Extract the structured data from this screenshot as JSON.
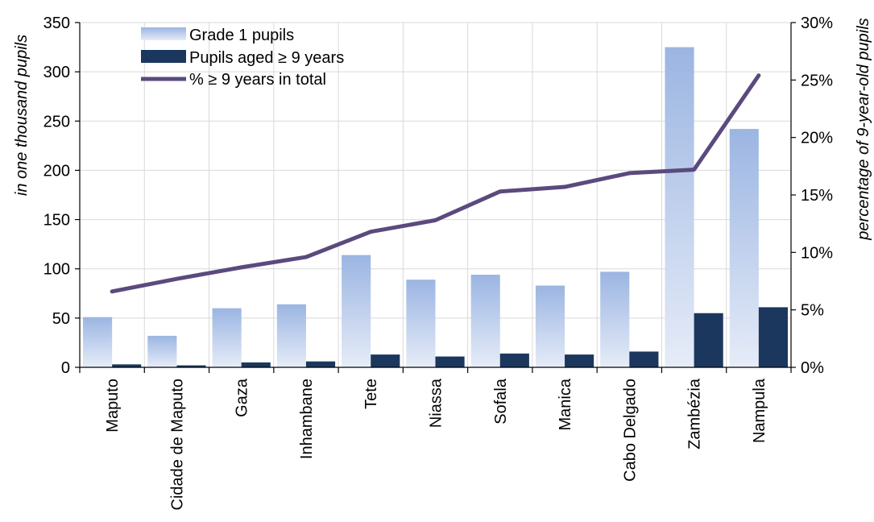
{
  "chart_data": {
    "type": "bar",
    "categories": [
      "Maputo",
      "Cidade de Maputo",
      "Gaza",
      "Inhambane",
      "Tete",
      "Niassa",
      "Sofala",
      "Manica",
      "Cabo Delgado",
      "Zambézia",
      "Nampula"
    ],
    "series": [
      {
        "name": "Grade 1 pupils",
        "type": "bar",
        "axis": "left",
        "values": [
          51,
          32,
          60,
          64,
          114,
          89,
          94,
          83,
          97,
          325,
          242
        ]
      },
      {
        "name": "Pupils aged ≥ 9 years",
        "type": "bar",
        "axis": "left",
        "values": [
          3,
          2,
          5,
          6,
          13,
          11,
          14,
          13,
          16,
          55,
          61
        ]
      },
      {
        "name": "% ≥ 9  years in total",
        "type": "line",
        "axis": "right",
        "values": [
          6.6,
          7.7,
          8.7,
          9.6,
          11.8,
          12.8,
          15.3,
          15.7,
          16.9,
          17.2,
          25.4
        ]
      }
    ],
    "ylabel": "in one thousand pupils",
    "y2label": "percentage of 9-year-old pupils",
    "ylim": [
      0,
      350
    ],
    "y2lim": [
      0,
      30
    ],
    "yticks": [
      "0",
      "50",
      "100",
      "150",
      "200",
      "250",
      "300",
      "350"
    ],
    "y2ticks": [
      "0%",
      "5%",
      "10%",
      "15%",
      "20%",
      "25%",
      "30%"
    ],
    "grid": true,
    "legend_position": "top-left",
    "colors": {
      "bar1_top": "#9bb5e2",
      "bar1_bottom": "#e6ecf8",
      "bar2": "#1b375d",
      "line": "#5b4a7d",
      "grid": "#d9d9d9"
    }
  }
}
